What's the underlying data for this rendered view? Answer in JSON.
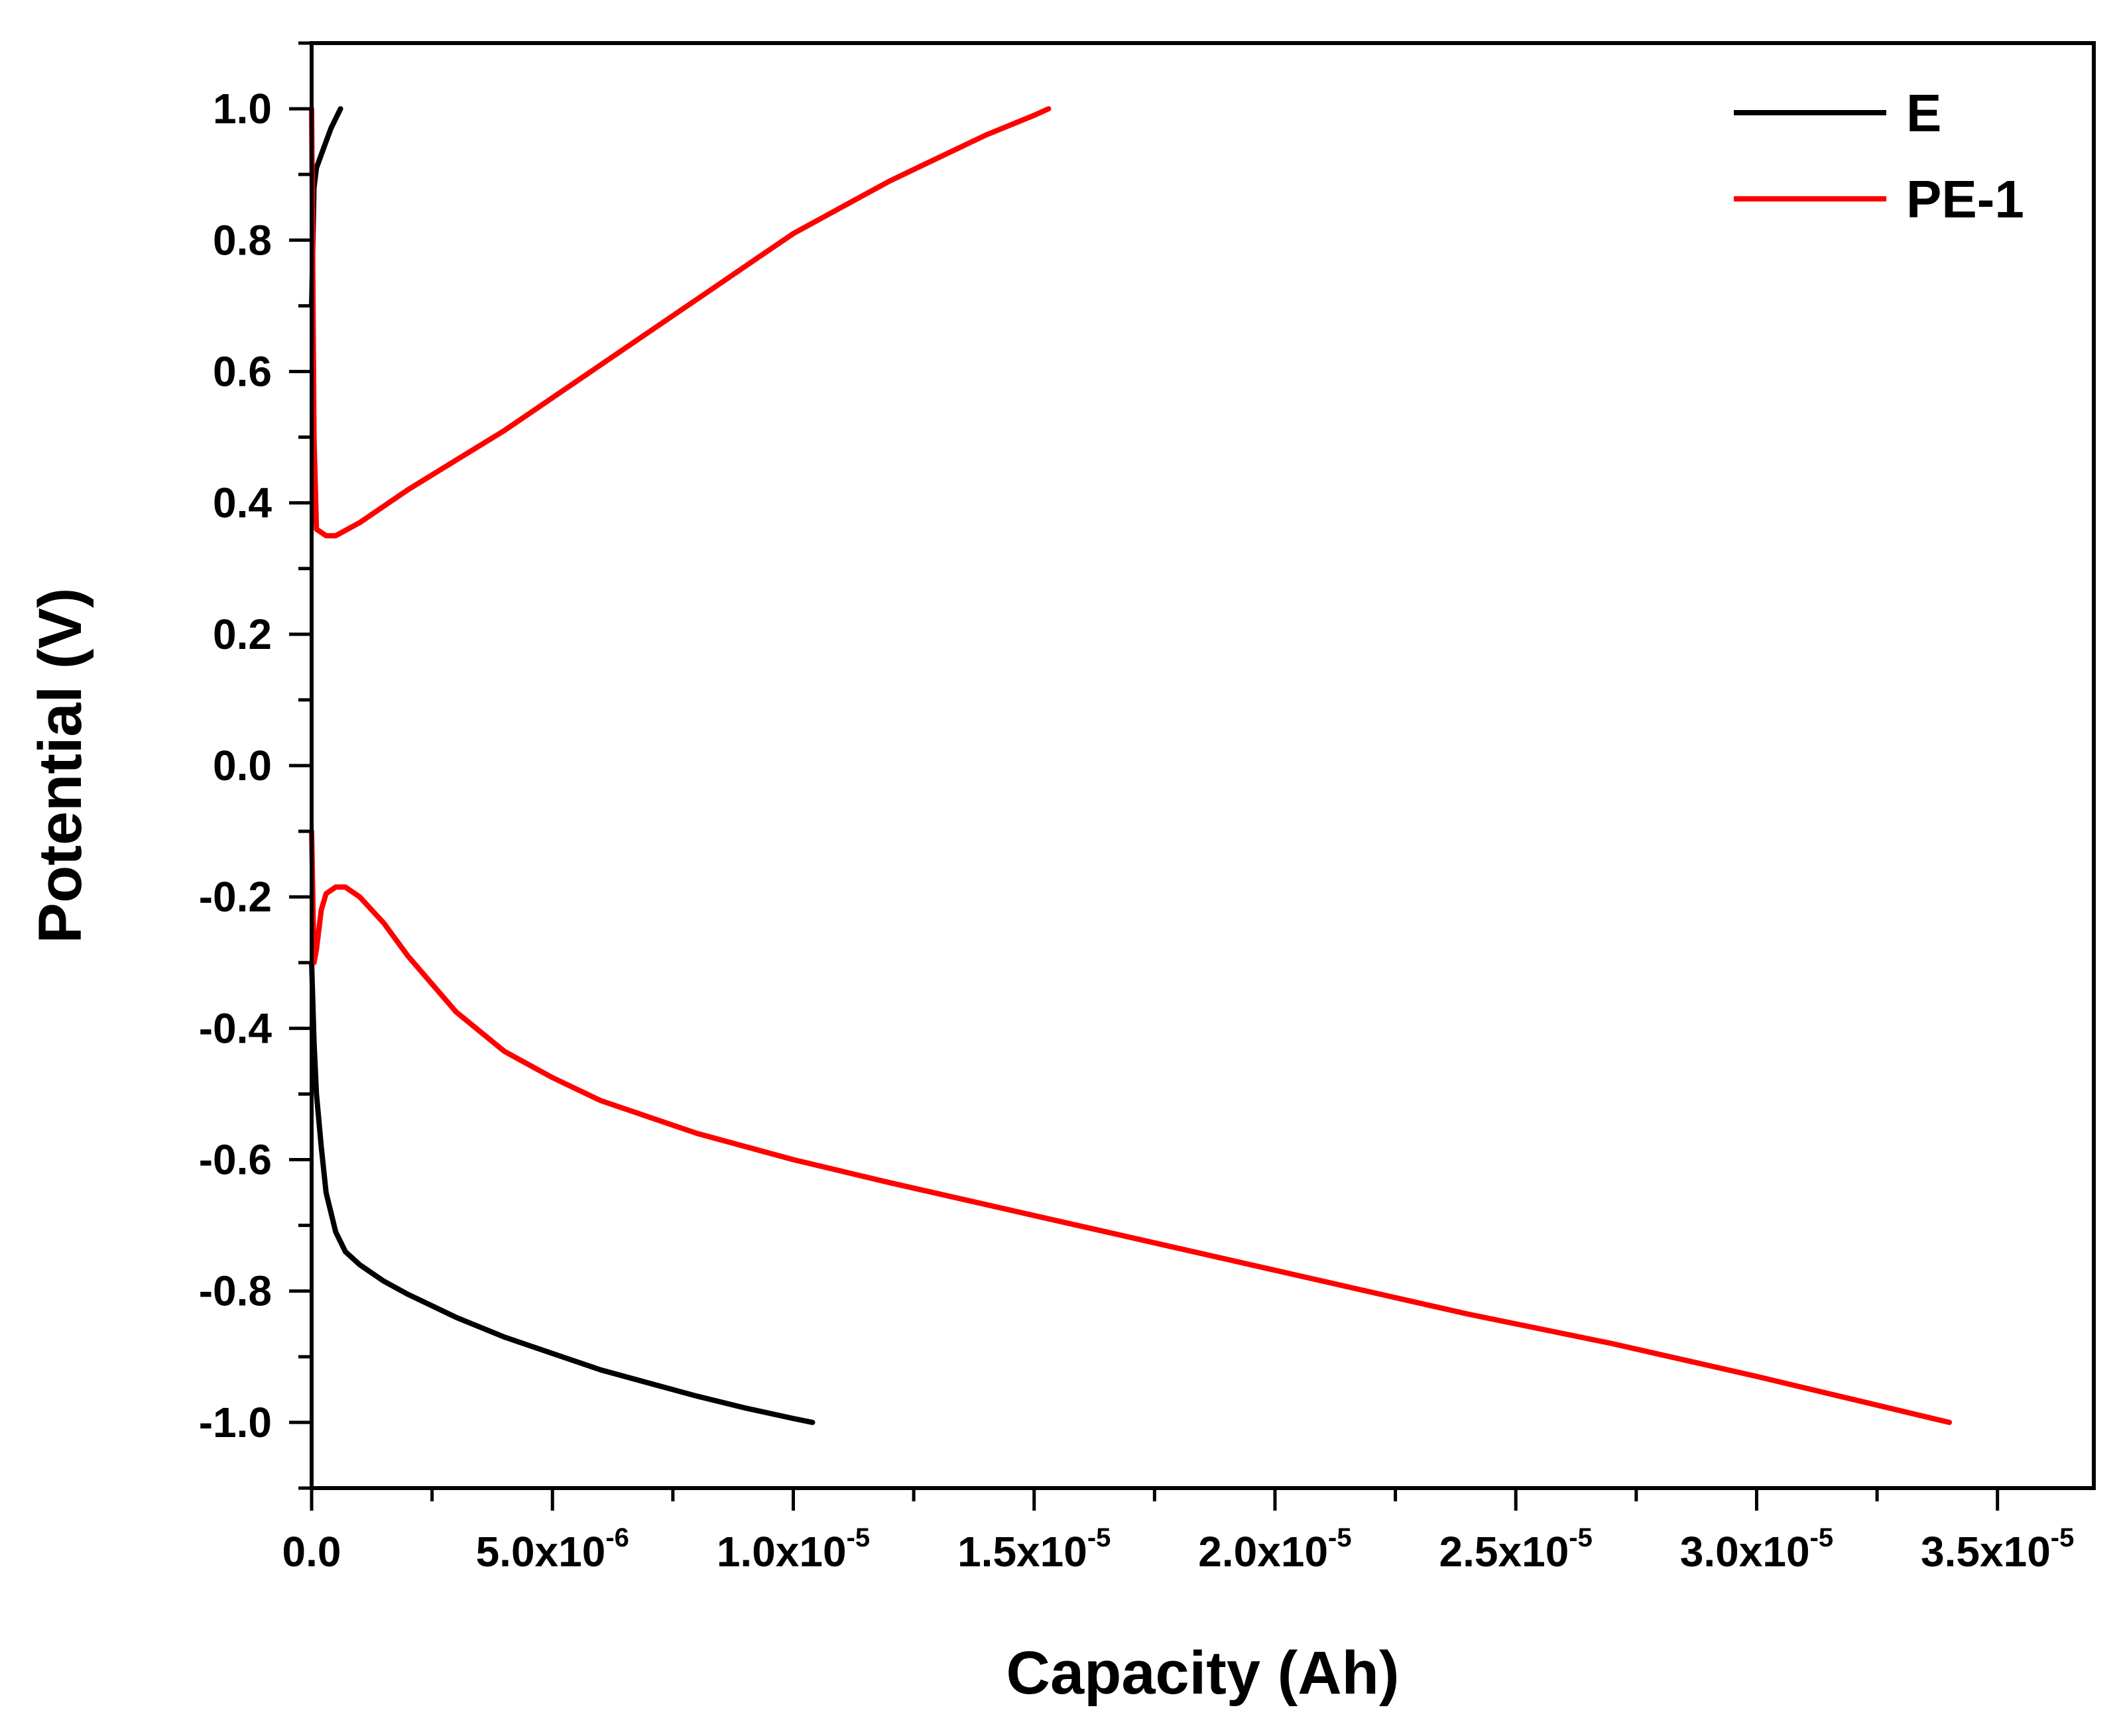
{
  "chart_data": {
    "type": "line",
    "title": "",
    "xlabel": "Capacity (Ah)",
    "ylabel": "Potential (V)",
    "xlim": [
      0,
      3.7e-05
    ],
    "ylim": [
      -1.1,
      1.1
    ],
    "grid": false,
    "legend_position": "top-right",
    "x_ticks": [
      {
        "value": 0,
        "label": "0.0",
        "exp": ""
      },
      {
        "value": 5e-06,
        "label": "5.0x10",
        "exp": "-6"
      },
      {
        "value": 1e-05,
        "label": "1.0x10",
        "exp": "-5"
      },
      {
        "value": 1.5e-05,
        "label": "1.5x10",
        "exp": "-5"
      },
      {
        "value": 2e-05,
        "label": "2.0x10",
        "exp": "-5"
      },
      {
        "value": 2.5e-05,
        "label": "2.5x10",
        "exp": "-5"
      },
      {
        "value": 3e-05,
        "label": "3.0x10",
        "exp": "-5"
      },
      {
        "value": 3.5e-05,
        "label": "3.5x10",
        "exp": "-5"
      }
    ],
    "y_ticks": [
      {
        "value": 1.0,
        "label": "1.0"
      },
      {
        "value": 0.8,
        "label": "0.8"
      },
      {
        "value": 0.6,
        "label": "0.6"
      },
      {
        "value": 0.4,
        "label": "0.4"
      },
      {
        "value": 0.2,
        "label": "0.2"
      },
      {
        "value": 0.0,
        "label": "0.0"
      },
      {
        "value": -0.2,
        "label": "-0.2"
      },
      {
        "value": -0.4,
        "label": "-0.4"
      },
      {
        "value": -0.6,
        "label": "-0.6"
      },
      {
        "value": -0.8,
        "label": "-0.8"
      },
      {
        "value": -1.0,
        "label": "-1.0"
      }
    ],
    "series": [
      {
        "name": "E",
        "color": "#000000",
        "segments": [
          {
            "x": [
              0,
              5e-08,
              1e-07,
              2e-07,
              3e-07,
              4e-07,
              5e-07,
              6e-07
            ],
            "y": [
              0.7,
              0.88,
              0.91,
              0.93,
              0.95,
              0.97,
              0.985,
              1.0
            ]
          },
          {
            "x": [
              0,
              5e-08,
              1e-07,
              2e-07,
              3e-07,
              5e-07,
              7e-07,
              1e-06,
              1.5e-06,
              2e-06,
              3e-06,
              4e-06,
              5e-06,
              6e-06,
              7e-06,
              8e-06,
              9e-06,
              1e-05,
              1.04e-05
            ],
            "y": [
              -0.3,
              -0.42,
              -0.5,
              -0.58,
              -0.65,
              -0.71,
              -0.74,
              -0.76,
              -0.785,
              -0.805,
              -0.84,
              -0.87,
              -0.895,
              -0.92,
              -0.94,
              -0.96,
              -0.978,
              -0.994,
              -1.0
            ]
          }
        ]
      },
      {
        "name": "PE-1",
        "color": "#ff0000",
        "segments": [
          {
            "x": [
              0,
              5e-08,
              1e-07,
              2e-07,
              3e-07,
              5e-07,
              1e-06,
              2e-06,
              3e-06,
              4e-06,
              5e-06,
              6e-06,
              7e-06,
              8e-06,
              9e-06,
              1e-05,
              1.1e-05,
              1.2e-05,
              1.3e-05,
              1.4e-05,
              1.5e-05,
              1.53e-05
            ],
            "y": [
              1.0,
              0.5,
              0.36,
              0.355,
              0.35,
              0.35,
              0.37,
              0.42,
              0.465,
              0.51,
              0.56,
              0.61,
              0.66,
              0.71,
              0.76,
              0.81,
              0.85,
              0.89,
              0.925,
              0.96,
              0.99,
              1.0
            ]
          },
          {
            "x": [
              0,
              5e-08,
              1e-07,
              2e-07,
              3e-07,
              5e-07,
              7e-07,
              1e-06,
              1.5e-06,
              2e-06,
              3e-06,
              4e-06,
              5e-06,
              6e-06,
              8e-06,
              1e-05,
              1.2e-05,
              1.5e-05,
              1.8e-05,
              2.1e-05,
              2.4e-05,
              2.7e-05,
              3e-05,
              3.2e-05,
              3.4e-05
            ],
            "y": [
              -0.1,
              -0.3,
              -0.28,
              -0.22,
              -0.195,
              -0.185,
              -0.185,
              -0.2,
              -0.24,
              -0.29,
              -0.375,
              -0.435,
              -0.475,
              -0.51,
              -0.56,
              -0.6,
              -0.635,
              -0.685,
              -0.735,
              -0.785,
              -0.835,
              -0.88,
              -0.93,
              -0.965,
              -1.0
            ]
          }
        ]
      }
    ]
  }
}
